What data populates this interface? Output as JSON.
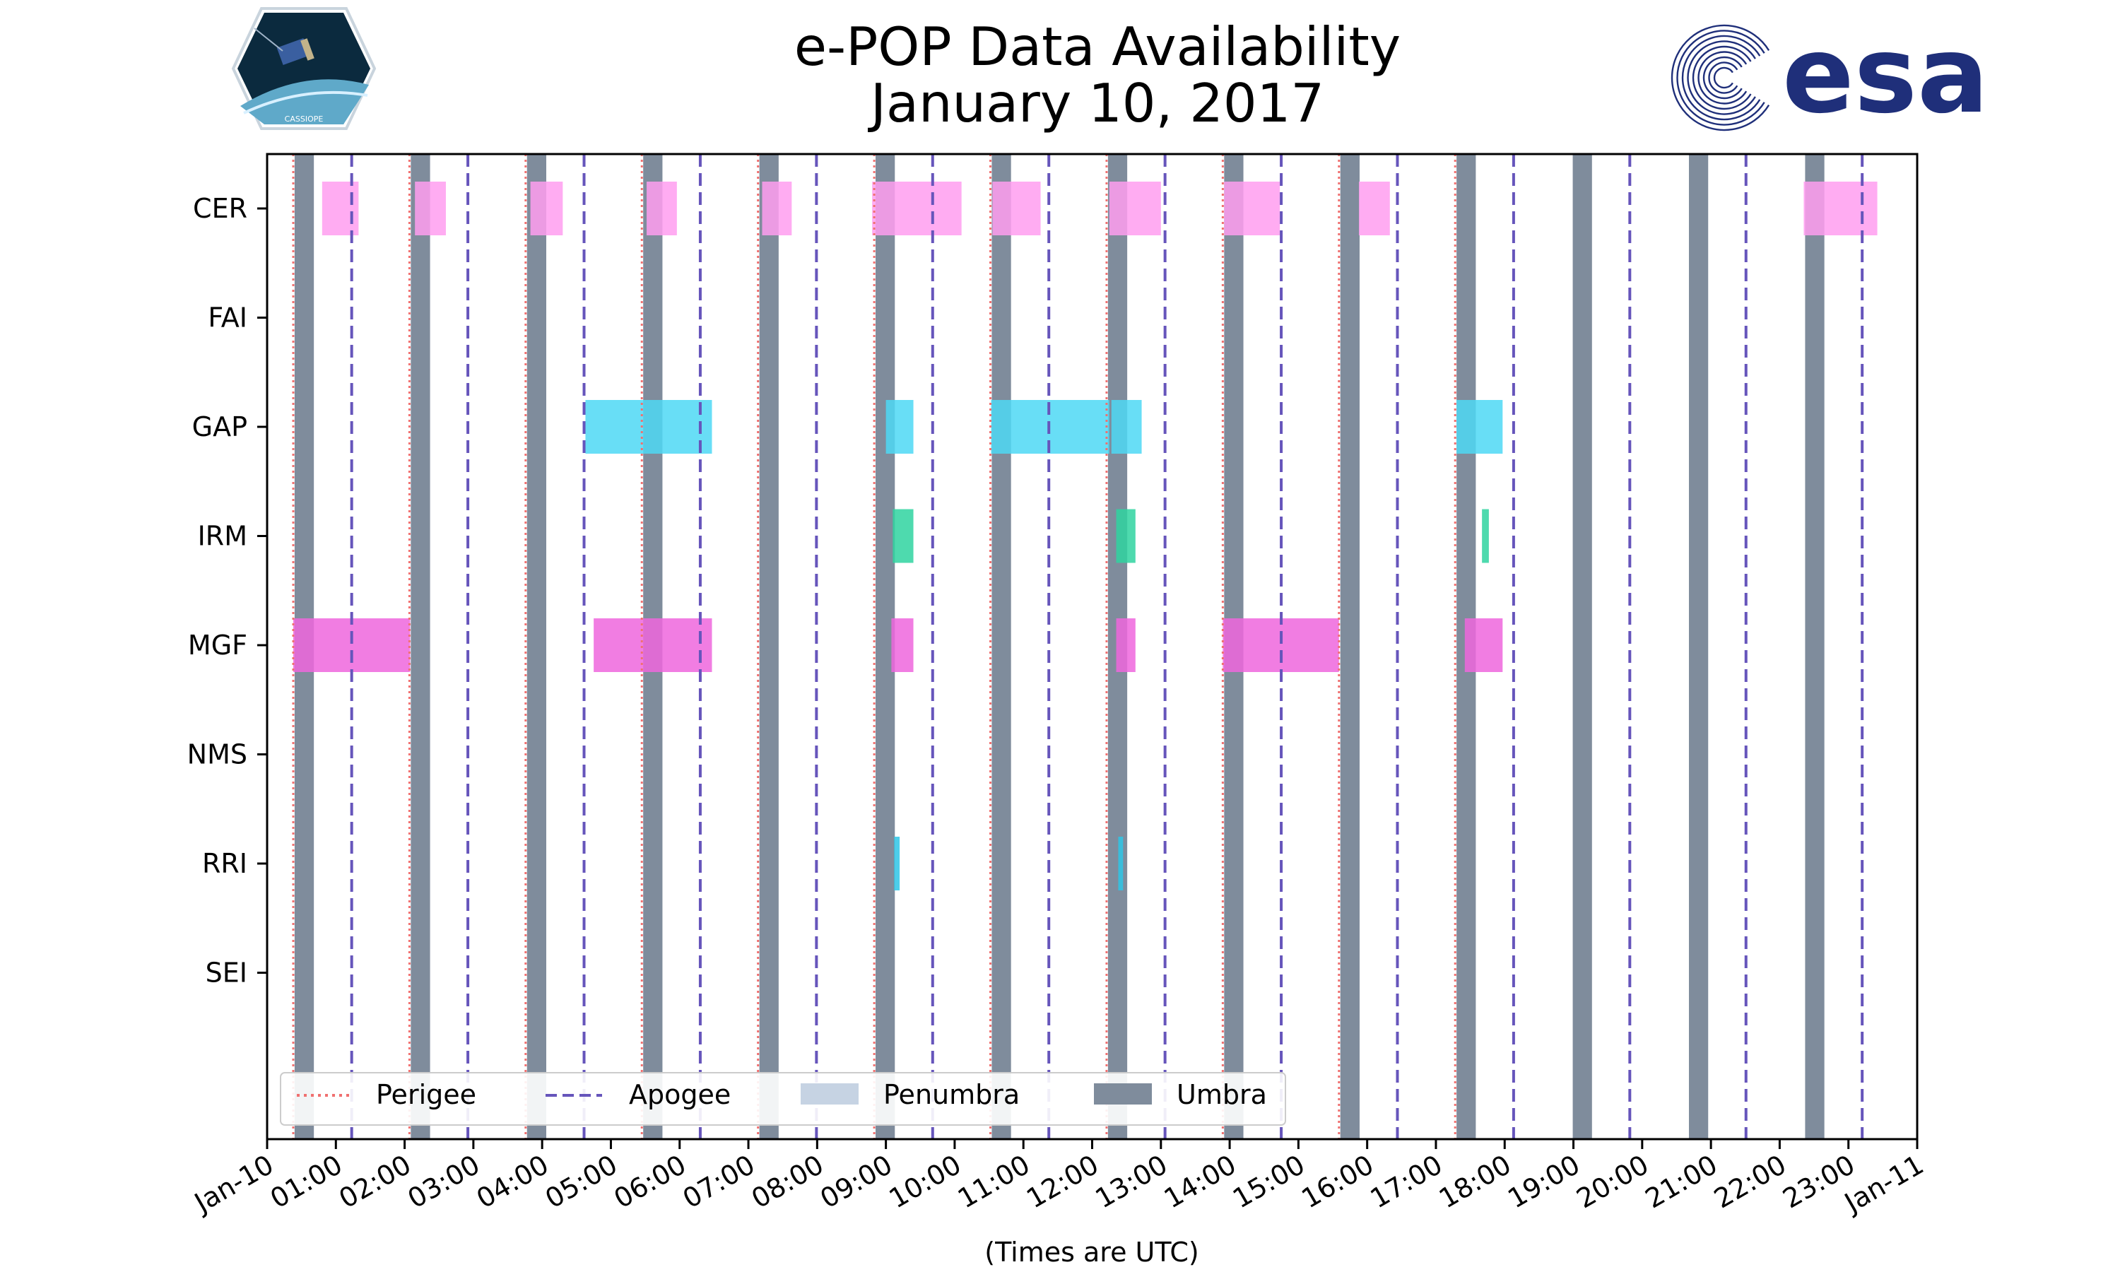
{
  "chart_data": {
    "type": "timeline",
    "title": "e-POP Data Availability",
    "subtitle": "January 10, 2017",
    "xlabel": "(Times are UTC)",
    "x_range_hours": [
      0,
      24
    ],
    "x_tick_labels": [
      "Jan-10",
      "01:00",
      "02:00",
      "03:00",
      "04:00",
      "05:00",
      "06:00",
      "07:00",
      "08:00",
      "09:00",
      "10:00",
      "11:00",
      "12:00",
      "13:00",
      "14:00",
      "15:00",
      "16:00",
      "17:00",
      "18:00",
      "19:00",
      "20:00",
      "21:00",
      "22:00",
      "23:00",
      "Jan-11"
    ],
    "instruments": [
      "CER",
      "FAI",
      "GAP",
      "IRM",
      "MGF",
      "NMS",
      "RRI",
      "SEI"
    ],
    "colors": {
      "CER": "#ff9ef0",
      "GAP": "#4dd8f5",
      "IRM": "#2fd4a0",
      "MGF": "#ee66dd",
      "RRI": "#2ec6e6",
      "perigee": "#f07070",
      "apogee": "#6655bb",
      "umbra": "#7f8c9c",
      "penumbra": "#c6d3e3"
    },
    "perigee_hours": [
      0.38,
      2.07,
      3.76,
      5.45,
      7.14,
      8.83,
      10.52,
      12.21,
      13.9,
      15.59,
      17.28
    ],
    "apogee_hours": [
      1.23,
      2.92,
      4.61,
      6.3,
      7.99,
      9.68,
      11.37,
      13.06,
      14.75,
      16.44,
      18.13,
      19.82,
      21.51,
      23.2
    ],
    "umbra_intervals": [
      [
        0.4,
        0.68
      ],
      [
        2.09,
        2.37
      ],
      [
        3.78,
        4.06
      ],
      [
        5.47,
        5.75
      ],
      [
        7.16,
        7.44
      ],
      [
        8.85,
        9.13
      ],
      [
        10.54,
        10.82
      ],
      [
        12.23,
        12.51
      ],
      [
        13.92,
        14.2
      ],
      [
        15.61,
        15.89
      ],
      [
        17.3,
        17.58
      ],
      [
        18.99,
        19.27
      ],
      [
        20.68,
        20.96
      ],
      [
        22.37,
        22.65
      ]
    ],
    "data_intervals": {
      "CER": [
        [
          0.8,
          1.33
        ],
        [
          2.15,
          2.6
        ],
        [
          3.83,
          4.3
        ],
        [
          5.52,
          5.96
        ],
        [
          7.2,
          7.63
        ],
        [
          8.8,
          10.1
        ],
        [
          10.55,
          11.25
        ],
        [
          12.25,
          13.0
        ],
        [
          13.92,
          14.73
        ],
        [
          15.88,
          16.33
        ],
        [
          22.35,
          23.42
        ]
      ],
      "FAI": [],
      "GAP": [
        [
          4.63,
          6.47
        ],
        [
          9.0,
          9.4
        ],
        [
          10.53,
          12.25
        ],
        [
          12.28,
          12.72
        ],
        [
          17.3,
          17.97
        ]
      ],
      "IRM": [
        [
          9.1,
          9.4
        ],
        [
          12.35,
          12.63
        ],
        [
          17.67,
          17.77
        ]
      ],
      "MGF": [
        [
          0.38,
          2.08
        ],
        [
          4.75,
          6.47
        ],
        [
          9.08,
          9.4
        ],
        [
          12.35,
          12.63
        ],
        [
          13.9,
          15.59
        ],
        [
          17.42,
          17.97
        ]
      ],
      "NMS": [],
      "RRI": [
        [
          9.12,
          9.2
        ],
        [
          12.38,
          12.45
        ]
      ],
      "SEI": []
    },
    "legend": [
      {
        "key": "perigee",
        "label": "Perigee"
      },
      {
        "key": "apogee",
        "label": "Apogee"
      },
      {
        "key": "penumbra",
        "label": "Penumbra"
      },
      {
        "key": "umbra",
        "label": "Umbra"
      }
    ],
    "legend_position": "bottom-left"
  },
  "logos": {
    "left_mission_badge": "CASSIOPE",
    "right_agency": "esa"
  }
}
